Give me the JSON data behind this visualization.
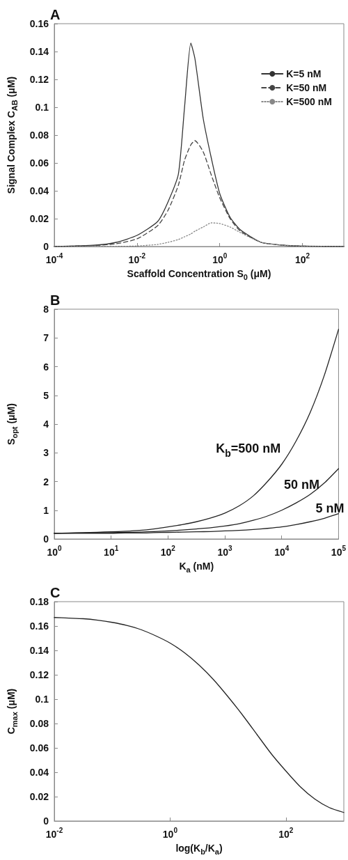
{
  "chart_data": [
    {
      "type": "line",
      "title": "A",
      "xlabel": "Scaffold Concentration S$_{0}$ (μM)",
      "ylabel": "Signal Complex C$_{AB}$ (μM)",
      "log": "x",
      "legend": "top right",
      "xlim": [
        0.0001,
        1000
      ],
      "ylim": [
        0,
        0.16
      ],
      "xticks": [
        {
          "value": 0.0001,
          "label": "10$^{-4}$"
        },
        {
          "value": 0.01,
          "label": "10$^{-2}$"
        },
        {
          "value": 1,
          "label": "10$^{0}$"
        },
        {
          "value": 100,
          "label": "10$^{2}$"
        }
      ],
      "yticks": [
        0,
        0.02,
        0.04,
        0.06,
        0.08,
        0.1,
        0.12,
        0.14,
        0.16
      ],
      "x": [
        0.0001,
        0.001,
        0.00316,
        0.01,
        0.0316,
        0.0562,
        0.1,
        0.141,
        0.2,
        0.251,
        0.398,
        0.631,
        1,
        1.78,
        3.16,
        10,
        31.6,
        100,
        1000
      ],
      "series": [
        {
          "name": "K=5 nM",
          "color": "#333333",
          "line_style": "solid",
          "values": [
            0,
            0.001,
            0.003,
            0.008,
            0.018,
            0.032,
            0.052,
            0.1,
            0.146,
            0.135,
            0.092,
            0.063,
            0.038,
            0.021,
            0.012,
            0.003,
            0.001,
            0.0003,
            0
          ]
        },
        {
          "name": "K=50 nM",
          "color": "#444444",
          "line_style": "dashed",
          "values": [
            0,
            0.0008,
            0.002,
            0.0055,
            0.015,
            0.026,
            0.044,
            0.062,
            0.073,
            0.076,
            0.068,
            0.051,
            0.035,
            0.02,
            0.011,
            0.003,
            0.001,
            0.0003,
            0
          ]
        },
        {
          "name": "K=500 nM",
          "color": "#888888",
          "line_style": "dotted",
          "values": [
            0,
            0,
            0.0001,
            0.0004,
            0.0015,
            0.003,
            0.005,
            0.007,
            0.009,
            0.011,
            0.014,
            0.017,
            0.0165,
            0.014,
            0.01,
            0.003,
            0.001,
            0.0003,
            0
          ]
        }
      ]
    },
    {
      "type": "line",
      "title": "B",
      "xlabel": "K$_{a}$ (nM)",
      "ylabel": "S$_{opt}$ (μM)",
      "log": "x",
      "xlim": [
        1,
        100000
      ],
      "ylim": [
        0,
        8
      ],
      "xticks": [
        {
          "value": 1,
          "label": "10$^{0}$"
        },
        {
          "value": 10,
          "label": "10$^{1}$"
        },
        {
          "value": 100,
          "label": "10$^{2}$"
        },
        {
          "value": 1000,
          "label": "10$^{3}$"
        },
        {
          "value": 10000,
          "label": "10$^{4}$"
        },
        {
          "value": 100000,
          "label": "10$^{5}$"
        }
      ],
      "yticks": [
        0,
        1,
        2,
        3,
        4,
        5,
        6,
        7,
        8
      ],
      "x": [
        1,
        1.78,
        3.16,
        5.62,
        10,
        17.8,
        31.6,
        56.2,
        100,
        178,
        316,
        562,
        1000,
        1778,
        3162,
        5623,
        10000,
        17783,
        31623,
        56234,
        100000
      ],
      "series": [
        {
          "name": "K$_{b}$=500 nM",
          "color": "#222222",
          "values": [
            0.2,
            0.21,
            0.22,
            0.235,
            0.25,
            0.27,
            0.3,
            0.35,
            0.42,
            0.5,
            0.6,
            0.73,
            0.9,
            1.15,
            1.5,
            2.0,
            2.6,
            3.4,
            4.4,
            5.7,
            7.3
          ]
        },
        {
          "name": "50 nM",
          "color": "#222222",
          "values": [
            0.2,
            0.205,
            0.21,
            0.215,
            0.22,
            0.23,
            0.24,
            0.26,
            0.28,
            0.31,
            0.35,
            0.39,
            0.45,
            0.53,
            0.65,
            0.8,
            1.0,
            1.25,
            1.55,
            1.95,
            2.45
          ]
        },
        {
          "name": "5 nM",
          "color": "#222222",
          "values": [
            0.2,
            0.2,
            0.2,
            0.2,
            0.2,
            0.21,
            0.21,
            0.22,
            0.23,
            0.24,
            0.25,
            0.26,
            0.28,
            0.3,
            0.33,
            0.37,
            0.42,
            0.5,
            0.6,
            0.72,
            0.88
          ]
        }
      ]
    },
    {
      "type": "line",
      "title": "C",
      "xlabel": "log(K$_{b}$/K$_{a}$)",
      "ylabel": "C$_{max}$ (μM)",
      "log": "x",
      "xlim": [
        0.01,
        1000
      ],
      "ylim": [
        0,
        0.18
      ],
      "xticks": [
        {
          "value": 0.01,
          "label": "10$^{-2}$"
        },
        {
          "value": 1,
          "label": "10$^{0}$"
        },
        {
          "value": 100,
          "label": "10$^{2}$"
        }
      ],
      "yticks": [
        0,
        0.02,
        0.04,
        0.06,
        0.08,
        0.1,
        0.12,
        0.14,
        0.16,
        0.18
      ],
      "x": [
        0.01,
        0.0178,
        0.0316,
        0.0562,
        0.1,
        0.178,
        0.316,
        0.562,
        1,
        1.78,
        3.16,
        5.62,
        10,
        17.8,
        31.6,
        56.2,
        100,
        178,
        316,
        562,
        1000
      ],
      "series": [
        {
          "color": "#222222",
          "values": [
            0.167,
            0.1665,
            0.166,
            0.1648,
            0.163,
            0.1605,
            0.157,
            0.152,
            0.146,
            0.138,
            0.128,
            0.116,
            0.102,
            0.087,
            0.071,
            0.055,
            0.041,
            0.028,
            0.018,
            0.011,
            0.007
          ]
        }
      ]
    }
  ]
}
